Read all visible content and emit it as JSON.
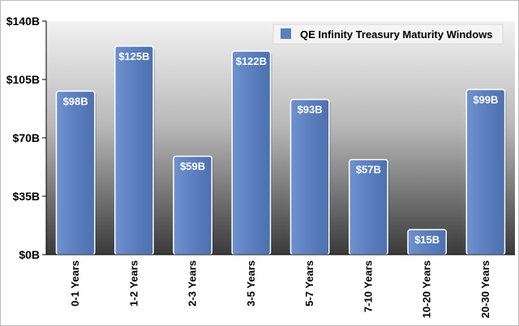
{
  "chart_data": {
    "type": "bar",
    "categories": [
      "0-1 Years",
      "1-2 Years",
      "2-3 Years",
      "3-5 Years",
      "5-7 Years",
      "7-10 Years",
      "10-20 Years",
      "20-30 Years"
    ],
    "series": [
      {
        "name": "QE Infinity Treasury Maturity Windows",
        "values": [
          98,
          125,
          59,
          122,
          93,
          57,
          15,
          99
        ],
        "color": "#5b7fbf"
      }
    ],
    "data_labels": [
      "$98B",
      "$125B",
      "$59B",
      "$122B",
      "$93B",
      "$57B",
      "$15B",
      "$99B"
    ],
    "ytick_labels": [
      "$0B",
      "$35B",
      "$70B",
      "$105B",
      "$140B"
    ],
    "yticks": [
      0,
      35,
      70,
      105,
      140
    ],
    "ylim": [
      0,
      140
    ],
    "title": "",
    "xlabel": "",
    "ylabel": "",
    "legend_position": "top-right",
    "background": "gradient light-to-dark gray",
    "grid": false
  }
}
